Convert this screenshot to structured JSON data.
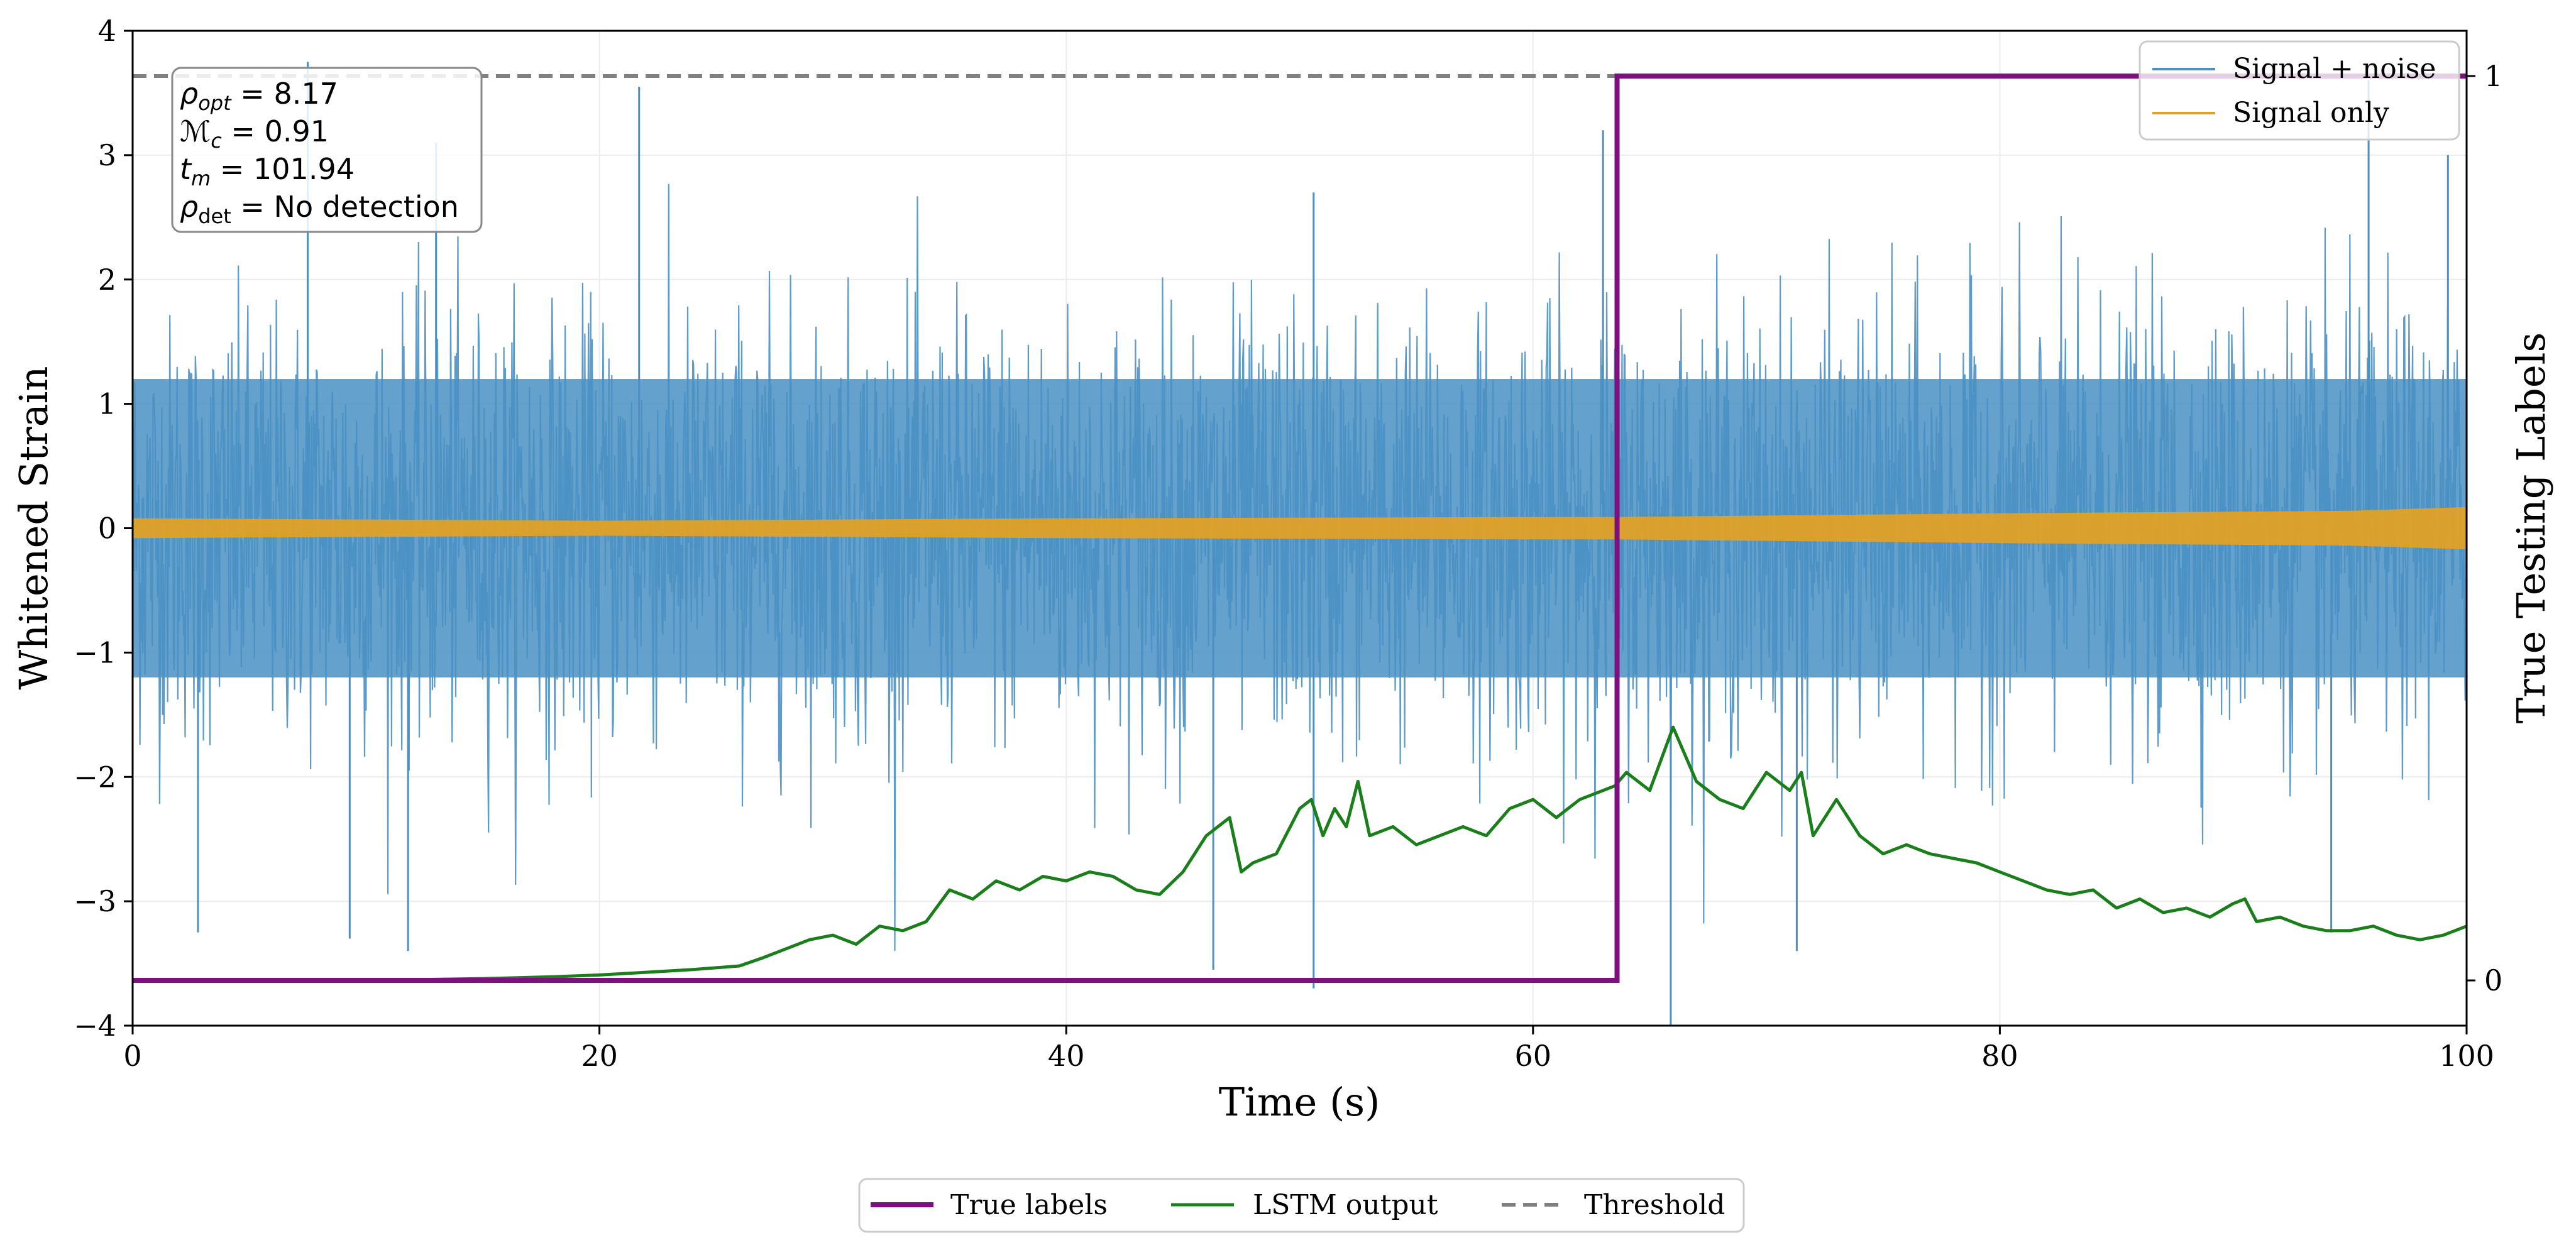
{
  "chart_data": {
    "type": "line",
    "xlabel": "Time (s)",
    "ylabel_left": "Whitened Strain",
    "ylabel_right": "True Testing Labels",
    "xlim": [
      0,
      100
    ],
    "ylim_left": [
      -4,
      4
    ],
    "ylim_right": [
      -0.05,
      1.05
    ],
    "x_ticks": [
      0,
      20,
      40,
      60,
      80,
      100
    ],
    "x_tick_labels": [
      "0",
      "20",
      "40",
      "60",
      "80",
      "100"
    ],
    "y_left_ticks": [
      -4,
      -3,
      -2,
      -1,
      0,
      1,
      2,
      3,
      4
    ],
    "y_left_tick_labels": [
      "−4",
      "−3",
      "−2",
      "−1",
      "0",
      "1",
      "2",
      "3",
      "4"
    ],
    "y_right_ticks": [
      0,
      1
    ],
    "y_right_tick_labels": [
      "0",
      "1"
    ],
    "grid": true,
    "threshold": 1.0,
    "annotation": {
      "rho_opt": "8.17",
      "M_c": "0.91",
      "t_m": "101.94",
      "rho_det": "No detection"
    },
    "noise_envelope": {
      "typical_upper": 1.2,
      "typical_lower": -1.2,
      "spikes_upper": [
        [
          7.5,
          3.75
        ],
        [
          13.0,
          3.1
        ],
        [
          21.7,
          3.55
        ],
        [
          50.6,
          2.7
        ],
        [
          63.0,
          3.2
        ],
        [
          95.8,
          3.6
        ],
        [
          99.2,
          3.0
        ]
      ],
      "spikes_lower": [
        [
          2.8,
          -3.25
        ],
        [
          9.3,
          -3.3
        ],
        [
          11.8,
          -3.4
        ],
        [
          46.3,
          -3.55
        ],
        [
          50.6,
          -3.7
        ],
        [
          65.9,
          -4.0
        ],
        [
          71.3,
          -3.4
        ],
        [
          94.2,
          -3.25
        ]
      ]
    },
    "signal_envelope": {
      "x": [
        0,
        20,
        40,
        60,
        63.5,
        80,
        95,
        100
      ],
      "amplitude": [
        0.08,
        0.06,
        0.08,
        0.09,
        0.09,
        0.12,
        0.14,
        0.17
      ]
    },
    "series": [
      {
        "name": "Signal + noise",
        "axis": "left",
        "color": "#4a90c4",
        "style": "envelope"
      },
      {
        "name": "Signal only",
        "axis": "left",
        "color": "#e0a125",
        "style": "envelope"
      },
      {
        "name": "True labels",
        "axis": "right",
        "color": "#7e0f7e",
        "x": [
          0,
          63.6,
          63.6,
          100
        ],
        "y": [
          0,
          0,
          1,
          1
        ]
      },
      {
        "name": "LSTM output",
        "axis": "right",
        "color": "#1a7f1a",
        "x": [
          0,
          5,
          10,
          15,
          18,
          20,
          22,
          24,
          26,
          27,
          28,
          29,
          30,
          31,
          32,
          33,
          34,
          35,
          36,
          37,
          38,
          39,
          40,
          41,
          42,
          43,
          44,
          45,
          46,
          47,
          47.5,
          48,
          49,
          50,
          50.5,
          51,
          51.5,
          52,
          52.5,
          53,
          54,
          55,
          56,
          57,
          58,
          59,
          60,
          61,
          62,
          63,
          63.5,
          64,
          65,
          66,
          67,
          68,
          69,
          70,
          71,
          71.5,
          72,
          73,
          73.5,
          74,
          75,
          76,
          77,
          78,
          79,
          80,
          81,
          82,
          83,
          84,
          85,
          86,
          87,
          88,
          89,
          90,
          90.5,
          91,
          92,
          93,
          94,
          95,
          96,
          97,
          98,
          99,
          100
        ],
        "y": [
          0.0,
          0.0,
          0.0,
          0.002,
          0.004,
          0.006,
          0.009,
          0.012,
          0.016,
          0.025,
          0.035,
          0.045,
          0.05,
          0.04,
          0.06,
          0.055,
          0.065,
          0.1,
          0.09,
          0.11,
          0.1,
          0.115,
          0.11,
          0.12,
          0.115,
          0.1,
          0.095,
          0.12,
          0.16,
          0.18,
          0.12,
          0.13,
          0.14,
          0.19,
          0.2,
          0.16,
          0.19,
          0.17,
          0.22,
          0.16,
          0.17,
          0.15,
          0.16,
          0.17,
          0.16,
          0.19,
          0.2,
          0.18,
          0.2,
          0.21,
          0.215,
          0.23,
          0.21,
          0.28,
          0.22,
          0.2,
          0.19,
          0.23,
          0.21,
          0.23,
          0.16,
          0.2,
          0.18,
          0.16,
          0.14,
          0.15,
          0.14,
          0.135,
          0.13,
          0.12,
          0.11,
          0.1,
          0.095,
          0.1,
          0.08,
          0.09,
          0.075,
          0.08,
          0.07,
          0.085,
          0.09,
          0.065,
          0.07,
          0.06,
          0.055,
          0.055,
          0.06,
          0.05,
          0.045,
          0.05,
          0.06
        ]
      },
      {
        "name": "Threshold",
        "axis": "right",
        "color": "#808080",
        "style": "dashed",
        "y": [
          1.0
        ]
      }
    ],
    "legend_top": [
      "Signal + noise",
      "Signal only"
    ],
    "legend_bottom": [
      "True labels",
      "LSTM output",
      "Threshold"
    ],
    "legend_top_placement": "top-right",
    "legend_bottom_placement": "bottom-center"
  }
}
